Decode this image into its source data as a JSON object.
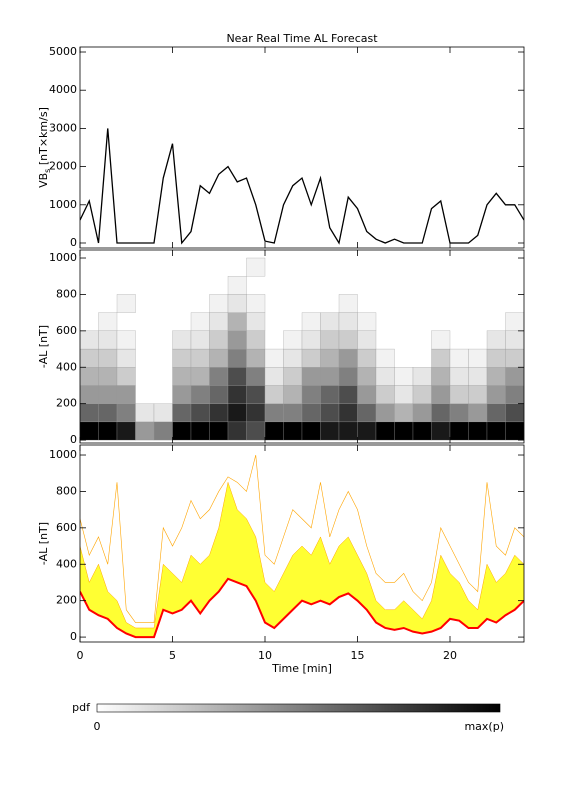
{
  "chart_data": [
    {
      "type": "line",
      "title": "Near Real Time AL Forecast",
      "ylabel": {
        "main": "VB",
        "sub": "s",
        "unit": " [nT×km/s]"
      },
      "xlim": [
        0,
        24
      ],
      "xticks": [
        0,
        5,
        10,
        15,
        20
      ],
      "ylim": [
        -131,
        5131
      ],
      "yticks": [
        0,
        1000,
        2000,
        3000,
        4000,
        5000
      ],
      "x": [
        0,
        0.5,
        1,
        1.5,
        2,
        2.5,
        3,
        3.5,
        4,
        4.5,
        5,
        5.5,
        6,
        6.5,
        7,
        7.5,
        8,
        8.5,
        9,
        9.5,
        10,
        10.5,
        11,
        11.5,
        12,
        12.5,
        13,
        13.5,
        14,
        14.5,
        15,
        15.5,
        16,
        16.5,
        17,
        17.5,
        18,
        18.5,
        19,
        19.5,
        20,
        20.5,
        21,
        21.5,
        22,
        22.5,
        23,
        23.5,
        24
      ],
      "series": [
        {
          "color": "#000000",
          "values": [
            600,
            1100,
            0,
            3000,
            0,
            0,
            0,
            0,
            0,
            1700,
            2600,
            0,
            300,
            1500,
            1300,
            1800,
            2000,
            1600,
            1700,
            1000,
            50,
            0,
            1000,
            1500,
            1700,
            1000,
            1700,
            400,
            0,
            1200,
            900,
            300,
            100,
            0,
            100,
            0,
            0,
            0,
            900,
            1100,
            0,
            0,
            0,
            200,
            1000,
            1300,
            1000,
            1000,
            600
          ]
        }
      ]
    },
    {
      "type": "heatmap",
      "ylabel": "-AL [nT]",
      "xlim": [
        0,
        24
      ],
      "xticks": [
        0,
        5,
        10,
        15,
        20
      ],
      "ylim": [
        -16,
        1044
      ],
      "yticks": [
        0,
        200,
        400,
        600,
        800,
        1000
      ],
      "xbins": [
        0,
        1,
        2,
        3,
        4,
        5,
        6,
        7,
        8,
        9,
        10,
        11,
        12,
        13,
        14,
        15,
        16,
        17,
        18,
        19,
        20,
        21,
        22,
        23,
        24
      ],
      "ybins": [
        0,
        100,
        200,
        300,
        400,
        500,
        600,
        700,
        800,
        900,
        1000
      ],
      "values": [
        [
          1,
          0.6,
          0.4,
          0.3,
          0.2,
          0.1,
          0,
          0,
          0,
          0
        ],
        [
          1,
          0.6,
          0.4,
          0.3,
          0.2,
          0.1,
          0.05,
          0,
          0,
          0
        ],
        [
          0.9,
          0.5,
          0.4,
          0.2,
          0.1,
          0.05,
          0,
          0.05,
          0,
          0
        ],
        [
          0.4,
          0.1,
          0,
          0,
          0,
          0,
          0,
          0,
          0,
          0
        ],
        [
          0.5,
          0.1,
          0,
          0,
          0,
          0,
          0,
          0,
          0,
          0
        ],
        [
          1,
          0.6,
          0.4,
          0.3,
          0.2,
          0.1,
          0,
          0,
          0,
          0
        ],
        [
          1,
          0.7,
          0.5,
          0.3,
          0.2,
          0.1,
          0.05,
          0,
          0,
          0
        ],
        [
          1,
          0.8,
          0.6,
          0.5,
          0.3,
          0.2,
          0.1,
          0.05,
          0,
          0
        ],
        [
          0.8,
          0.9,
          0.8,
          0.7,
          0.5,
          0.4,
          0.3,
          0.1,
          0.05,
          0
        ],
        [
          0.7,
          0.8,
          0.7,
          0.5,
          0.3,
          0.2,
          0.1,
          0.05,
          0,
          0.05
        ],
        [
          1,
          0.5,
          0.2,
          0.1,
          0.05,
          0,
          0,
          0,
          0,
          0
        ],
        [
          1,
          0.5,
          0.3,
          0.2,
          0.1,
          0.05,
          0,
          0,
          0,
          0
        ],
        [
          1,
          0.6,
          0.5,
          0.4,
          0.2,
          0.1,
          0.05,
          0,
          0,
          0
        ],
        [
          0.9,
          0.7,
          0.6,
          0.4,
          0.3,
          0.2,
          0.1,
          0,
          0,
          0
        ],
        [
          0.9,
          0.8,
          0.7,
          0.5,
          0.4,
          0.2,
          0.1,
          0.05,
          0,
          0
        ],
        [
          0.9,
          0.6,
          0.4,
          0.3,
          0.2,
          0.1,
          0.05,
          0,
          0,
          0
        ],
        [
          1,
          0.4,
          0.2,
          0.1,
          0.05,
          0,
          0,
          0,
          0,
          0
        ],
        [
          1,
          0.3,
          0.1,
          0.05,
          0,
          0,
          0,
          0,
          0,
          0
        ],
        [
          1,
          0.4,
          0.2,
          0.1,
          0,
          0,
          0,
          0,
          0,
          0
        ],
        [
          0.9,
          0.6,
          0.4,
          0.3,
          0.2,
          0.05,
          0,
          0,
          0,
          0
        ],
        [
          1,
          0.5,
          0.2,
          0.1,
          0.05,
          0,
          0,
          0,
          0,
          0
        ],
        [
          1,
          0.4,
          0.2,
          0.1,
          0.05,
          0,
          0,
          0,
          0,
          0
        ],
        [
          1,
          0.6,
          0.4,
          0.3,
          0.2,
          0.1,
          0,
          0,
          0,
          0
        ],
        [
          1,
          0.7,
          0.5,
          0.4,
          0.2,
          0.1,
          0.05,
          0,
          0,
          0
        ]
      ]
    },
    {
      "type": "band",
      "ylabel": "-AL [nT]",
      "xlabel": "Time [min]",
      "xlim": [
        0,
        24
      ],
      "xticks": [
        0,
        5,
        10,
        15,
        20
      ],
      "ylim": [
        -27,
        1055
      ],
      "yticks": [
        0,
        200,
        400,
        600,
        800,
        1000
      ],
      "x": [
        0,
        0.5,
        1,
        1.5,
        2,
        2.5,
        3,
        3.5,
        4,
        4.5,
        5,
        5.5,
        6,
        6.5,
        7,
        7.5,
        8,
        8.5,
        9,
        9.5,
        10,
        10.5,
        11,
        11.5,
        12,
        12.5,
        13,
        13.5,
        14,
        14.5,
        15,
        15.5,
        16,
        16.5,
        17,
        17.5,
        18,
        18.5,
        19,
        19.5,
        20,
        20.5,
        21,
        21.5,
        22,
        22.5,
        23,
        23.5,
        24
      ],
      "band": {
        "color": "#ffff33",
        "values": [
          500,
          300,
          400,
          250,
          200,
          80,
          50,
          50,
          50,
          400,
          350,
          300,
          450,
          400,
          450,
          600,
          850,
          700,
          650,
          550,
          300,
          250,
          350,
          450,
          500,
          450,
          550,
          400,
          500,
          550,
          450,
          350,
          200,
          150,
          150,
          200,
          150,
          100,
          200,
          450,
          350,
          300,
          200,
          150,
          400,
          300,
          350,
          450,
          400
        ]
      },
      "series": [
        {
          "color": "#ffa500",
          "values": [
            650,
            450,
            550,
            400,
            850,
            150,
            80,
            80,
            80,
            600,
            500,
            600,
            750,
            650,
            700,
            800,
            880,
            850,
            800,
            1000,
            450,
            400,
            550,
            700,
            650,
            600,
            850,
            550,
            700,
            800,
            700,
            500,
            350,
            300,
            300,
            350,
            250,
            200,
            300,
            600,
            500,
            400,
            300,
            250,
            850,
            500,
            450,
            600,
            550
          ]
        },
        {
          "color": "#ff0000",
          "values": [
            250,
            150,
            120,
            100,
            50,
            20,
            0,
            0,
            0,
            150,
            130,
            150,
            200,
            130,
            200,
            250,
            320,
            300,
            280,
            200,
            80,
            50,
            100,
            150,
            200,
            180,
            200,
            180,
            220,
            240,
            200,
            150,
            80,
            50,
            40,
            50,
            30,
            20,
            30,
            50,
            100,
            90,
            50,
            50,
            100,
            80,
            120,
            150,
            200
          ]
        }
      ]
    },
    {
      "type": "colorbar",
      "label": "pdf",
      "min_label": "0",
      "max_label": "max(p)"
    }
  ]
}
